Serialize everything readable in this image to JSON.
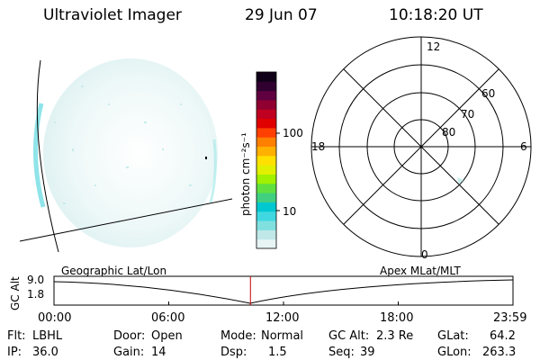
{
  "header": {
    "title": "Ultraviolet Imager",
    "date": "29 Jun 07",
    "time": "10:18:20 UT"
  },
  "colorbar": {
    "unit_label": "photon cm⁻²s⁻¹",
    "ticks": [
      "100",
      "10"
    ],
    "colors": [
      "#e8f4f4",
      "#c0e8e8",
      "#80e0e0",
      "#40d8e0",
      "#00c8d0",
      "#40d080",
      "#60e040",
      "#a0f000",
      "#e0f000",
      "#ffe000",
      "#ffb000",
      "#ff8000",
      "#ff4000",
      "#e00000",
      "#c00020",
      "#900030",
      "#600040",
      "#300030",
      "#100018"
    ]
  },
  "polar": {
    "mlt_labels": {
      "top": "12",
      "left": "18",
      "right": "6",
      "bottom": "0"
    },
    "lat_labels": [
      "60",
      "70",
      "80"
    ]
  },
  "timeline": {
    "left_label": "Geographic Lat/Lon",
    "right_label": "Apex MLat/MLT",
    "axis_title": "GC Alt",
    "y_max": "9.0",
    "y_min": "1.8",
    "x_ticks": [
      "00:00",
      "06:00",
      "12:00",
      "18:00",
      "23:59"
    ],
    "marker_time_fraction": 0.428,
    "marker_color": "#cc0000"
  },
  "status": {
    "flt_label": "Flt:",
    "flt_value": "LBHL",
    "ip_label": "IP:",
    "ip_value": "36.0",
    "door_label": "Door:",
    "door_value": "Open",
    "gain_label": "Gain:",
    "gain_value": "14",
    "mode_label": "Mode:",
    "mode_value": "Normal",
    "dsp_label": "Dsp:",
    "dsp_value": "1.5",
    "gcalt_label": "GC Alt:",
    "gcalt_value": "2.3 Re",
    "seq_label": "Seq:",
    "seq_value": "39",
    "glat_label": "GLat:",
    "glat_value": "64.2",
    "glon_label": "GLon:",
    "glon_value": "263.3"
  }
}
